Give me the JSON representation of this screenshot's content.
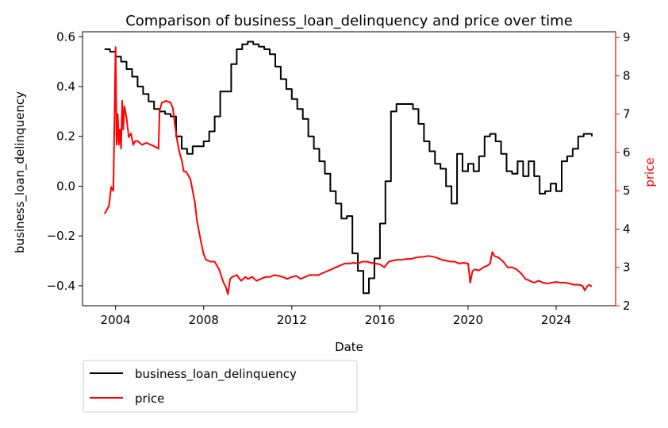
{
  "chart_data": {
    "type": "line",
    "title": "Comparison of business_loan_delinquency and price over time",
    "xlabel": "Date",
    "ylabel_left": "business_loan_delinquency",
    "ylabel_right": "price",
    "xlim": [
      2002.5,
      2026.7
    ],
    "ylim_left": [
      -0.48,
      0.62
    ],
    "ylim_right": [
      2.0,
      9.15
    ],
    "x_ticks": [
      2004,
      2008,
      2012,
      2016,
      2020,
      2024
    ],
    "x_tick_labels": [
      "2004",
      "2008",
      "2012",
      "2016",
      "2020",
      "2024"
    ],
    "y_left_ticks": [
      -0.4,
      -0.2,
      0.0,
      0.2,
      0.4,
      0.6
    ],
    "y_left_tick_labels": [
      "−0.4",
      "−0.2",
      "0.0",
      "0.2",
      "0.4",
      "0.6"
    ],
    "y_right_ticks": [
      2,
      3,
      4,
      5,
      6,
      7,
      8,
      9
    ],
    "y_right_tick_labels": [
      "2",
      "3",
      "4",
      "5",
      "6",
      "7",
      "8",
      "9"
    ],
    "grid": false,
    "legend": {
      "placement": "below-left",
      "entries": [
        "business_loan_delinquency",
        "price"
      ]
    },
    "colors": {
      "business_loan_delinquency": "#000000",
      "price": "#ff0000",
      "right_axis": "#ff0000"
    },
    "series": [
      {
        "name": "business_loan_delinquency",
        "axis": "left",
        "step": true,
        "x": [
          2003.5,
          2003.75,
          2004.0,
          2004.25,
          2004.5,
          2004.75,
          2005.0,
          2005.25,
          2005.5,
          2005.75,
          2006.0,
          2006.25,
          2006.5,
          2006.75,
          2007.0,
          2007.25,
          2007.5,
          2007.75,
          2008.0,
          2008.25,
          2008.5,
          2008.75,
          2009.0,
          2009.25,
          2009.5,
          2009.75,
          2010.0,
          2010.25,
          2010.5,
          2010.75,
          2011.0,
          2011.25,
          2011.5,
          2011.75,
          2012.0,
          2012.25,
          2012.5,
          2012.75,
          2013.0,
          2013.25,
          2013.5,
          2013.75,
          2014.0,
          2014.25,
          2014.5,
          2014.75,
          2015.0,
          2015.25,
          2015.5,
          2015.75,
          2016.0,
          2016.25,
          2016.5,
          2016.75,
          2017.0,
          2017.25,
          2017.5,
          2017.75,
          2018.0,
          2018.25,
          2018.5,
          2018.75,
          2019.0,
          2019.25,
          2019.5,
          2019.75,
          2020.0,
          2020.25,
          2020.5,
          2020.75,
          2021.0,
          2021.25,
          2021.5,
          2021.75,
          2022.0,
          2022.25,
          2022.5,
          2022.75,
          2023.0,
          2023.25,
          2023.5,
          2023.75,
          2024.0,
          2024.25,
          2024.5,
          2024.75,
          2025.0,
          2025.25,
          2025.5,
          2025.62
        ],
        "y": [
          0.55,
          0.54,
          0.52,
          0.5,
          0.47,
          0.44,
          0.4,
          0.37,
          0.34,
          0.31,
          0.3,
          0.29,
          0.28,
          0.2,
          0.15,
          0.13,
          0.16,
          0.16,
          0.18,
          0.22,
          0.28,
          0.38,
          0.38,
          0.49,
          0.55,
          0.57,
          0.58,
          0.57,
          0.56,
          0.55,
          0.53,
          0.48,
          0.43,
          0.39,
          0.35,
          0.31,
          0.27,
          0.2,
          0.15,
          0.1,
          0.05,
          -0.02,
          -0.07,
          -0.13,
          -0.12,
          -0.27,
          -0.34,
          -0.43,
          -0.37,
          -0.29,
          -0.15,
          0.02,
          0.3,
          0.33,
          0.33,
          0.33,
          0.31,
          0.25,
          0.18,
          0.14,
          0.09,
          0.07,
          -0.0,
          -0.07,
          0.13,
          0.06,
          0.09,
          0.06,
          0.12,
          0.2,
          0.21,
          0.18,
          0.13,
          0.06,
          0.05,
          0.1,
          0.04,
          0.1,
          0.04,
          -0.03,
          -0.02,
          0.01,
          -0.02,
          0.1,
          0.12,
          0.15,
          0.2,
          0.21,
          0.21,
          0.2
        ]
      },
      {
        "name": "price",
        "axis": "right",
        "step": false,
        "x": [
          2003.5,
          2003.6,
          2003.7,
          2003.8,
          2003.9,
          2004.0,
          2004.05,
          2004.1,
          2004.15,
          2004.2,
          2004.25,
          2004.3,
          2004.35,
          2004.4,
          2004.5,
          2004.6,
          2004.7,
          2004.8,
          2004.9,
          2005.0,
          2005.2,
          2005.4,
          2005.6,
          2005.8,
          2005.95,
          2006.0,
          2006.05,
          2006.1,
          2006.3,
          2006.5,
          2006.6,
          2006.7,
          2006.8,
          2006.9,
          2007.0,
          2007.1,
          2007.2,
          2007.3,
          2007.4,
          2007.5,
          2007.6,
          2007.7,
          2007.8,
          2007.9,
          2008.0,
          2008.1,
          2008.3,
          2008.5,
          2008.7,
          2008.9,
          2009.0,
          2009.1,
          2009.2,
          2009.3,
          2009.5,
          2009.7,
          2009.9,
          2010.0,
          2010.2,
          2010.4,
          2010.6,
          2010.8,
          2011.0,
          2011.2,
          2011.4,
          2011.6,
          2011.8,
          2012.0,
          2012.2,
          2012.4,
          2012.6,
          2012.8,
          2013.0,
          2013.2,
          2013.4,
          2013.6,
          2013.8,
          2014.0,
          2014.2,
          2014.4,
          2014.6,
          2014.8,
          2015.0,
          2015.2,
          2015.4,
          2015.6,
          2015.8,
          2016.0,
          2016.2,
          2016.4,
          2016.6,
          2016.8,
          2017.0,
          2017.2,
          2017.4,
          2017.6,
          2017.8,
          2018.0,
          2018.2,
          2018.4,
          2018.6,
          2018.8,
          2019.0,
          2019.2,
          2019.4,
          2019.6,
          2019.8,
          2020.0,
          2020.1,
          2020.2,
          2020.3,
          2020.5,
          2020.7,
          2020.9,
          2021.0,
          2021.1,
          2021.2,
          2021.4,
          2021.6,
          2021.8,
          2022.0,
          2022.2,
          2022.4,
          2022.6,
          2022.8,
          2023.0,
          2023.2,
          2023.4,
          2023.6,
          2023.8,
          2024.0,
          2024.2,
          2024.4,
          2024.6,
          2024.8,
          2025.0,
          2025.2,
          2025.3,
          2025.4,
          2025.5,
          2025.62
        ],
        "y": [
          4.4,
          4.5,
          4.6,
          5.1,
          5.0,
          8.75,
          6.2,
          7.0,
          6.2,
          6.6,
          6.1,
          7.35,
          6.6,
          7.2,
          6.9,
          6.4,
          6.5,
          6.2,
          6.3,
          6.3,
          6.2,
          6.25,
          6.2,
          6.15,
          6.1,
          7.1,
          7.2,
          7.3,
          7.35,
          7.3,
          7.15,
          6.7,
          6.3,
          6.0,
          5.8,
          5.5,
          5.5,
          5.4,
          5.3,
          5.0,
          4.7,
          4.2,
          3.9,
          3.6,
          3.35,
          3.2,
          3.15,
          3.15,
          2.95,
          2.6,
          2.5,
          2.3,
          2.7,
          2.75,
          2.8,
          2.65,
          2.75,
          2.7,
          2.75,
          2.65,
          2.7,
          2.75,
          2.75,
          2.8,
          2.78,
          2.75,
          2.7,
          2.75,
          2.78,
          2.7,
          2.75,
          2.8,
          2.8,
          2.8,
          2.85,
          2.9,
          2.95,
          3.0,
          3.05,
          3.1,
          3.1,
          3.12,
          3.1,
          3.15,
          3.15,
          3.12,
          3.1,
          3.08,
          3.0,
          3.15,
          3.18,
          3.2,
          3.2,
          3.22,
          3.22,
          3.25,
          3.27,
          3.28,
          3.3,
          3.28,
          3.25,
          3.2,
          3.18,
          3.15,
          3.15,
          3.1,
          3.12,
          3.1,
          2.6,
          2.9,
          2.95,
          2.92,
          3.0,
          3.05,
          3.1,
          3.4,
          3.3,
          3.25,
          3.15,
          3.0,
          3.0,
          2.95,
          2.85,
          2.7,
          2.65,
          2.6,
          2.65,
          2.6,
          2.58,
          2.6,
          2.62,
          2.6,
          2.6,
          2.58,
          2.55,
          2.55,
          2.52,
          2.4,
          2.5,
          2.55,
          2.5
        ]
      }
    ]
  }
}
